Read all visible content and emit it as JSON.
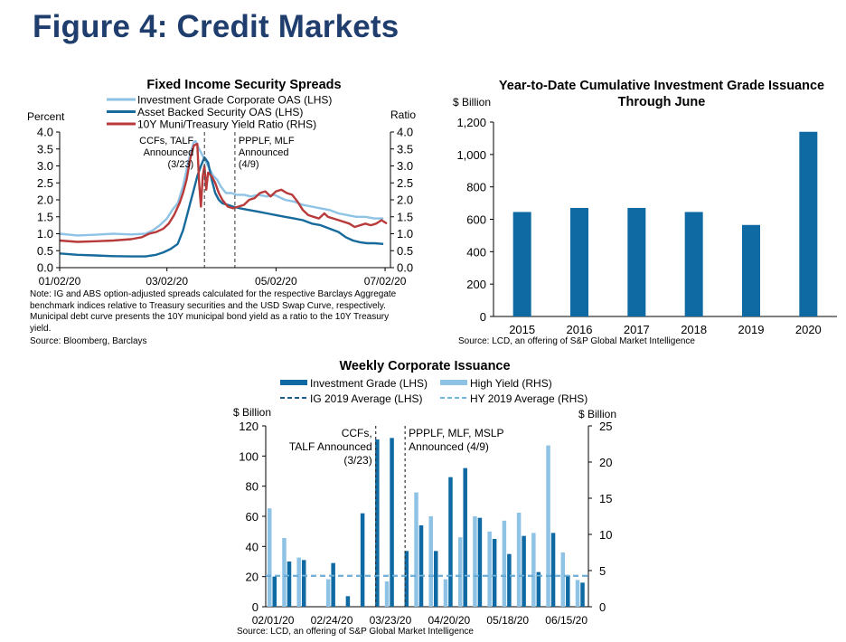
{
  "figure_title": "Figure 4: Credit Markets",
  "colors": {
    "title": "#1f3e6d",
    "ig_light": "#8fc3e6",
    "abs_dark": "#166a9c",
    "muni_red": "#b83a3a",
    "bar_dark": "#0f6aa3",
    "hy_light": "#8fc3e6",
    "ig_avg": "#1b5e8c",
    "hy_avg": "#6fb4dd"
  },
  "chart_data": [
    {
      "id": "spreads",
      "type": "line",
      "title": "Fixed Income Security Spreads",
      "ylabel_left": "Percent",
      "ylabel_right": "Ratio",
      "ylim": [
        0,
        4
      ],
      "yticks": [
        "0.0",
        "0.5",
        "1.0",
        "1.5",
        "2.0",
        "2.5",
        "3.0",
        "3.5",
        "4.0"
      ],
      "x_tick_labels": [
        "01/02/20",
        "03/02/20",
        "05/02/20",
        "07/02/20"
      ],
      "x_tick_days": [
        0,
        60,
        121,
        182
      ],
      "x_range_days": [
        0,
        185
      ],
      "legend": [
        "Investment Grade Corporate OAS (LHS)",
        "Asset Backed Security OAS (LHS)",
        "10Y Muni/Treasury Yield Ratio (RHS)"
      ],
      "series": [
        {
          "name": "Investment Grade Corporate OAS (LHS)",
          "color_key": "ig_light",
          "points": [
            [
              0,
              1.0
            ],
            [
              10,
              0.95
            ],
            [
              20,
              0.97
            ],
            [
              30,
              1.0
            ],
            [
              40,
              0.98
            ],
            [
              48,
              1.0
            ],
            [
              52,
              1.1
            ],
            [
              56,
              1.25
            ],
            [
              60,
              1.45
            ],
            [
              63,
              1.7
            ],
            [
              66,
              1.9
            ],
            [
              69,
              2.4
            ],
            [
              71,
              2.9
            ],
            [
              73,
              3.35
            ],
            [
              75,
              3.7
            ],
            [
              76,
              3.73
            ],
            [
              78,
              3.5
            ],
            [
              80,
              3.3
            ],
            [
              82,
              3.1
            ],
            [
              84,
              2.9
            ],
            [
              86,
              2.7
            ],
            [
              88,
              2.6
            ],
            [
              90,
              2.4
            ],
            [
              93,
              2.2
            ],
            [
              96,
              2.2
            ],
            [
              99,
              2.15
            ],
            [
              103,
              2.15
            ],
            [
              107,
              2.1
            ],
            [
              111,
              2.15
            ],
            [
              116,
              2.1
            ],
            [
              120,
              2.15
            ],
            [
              126,
              2.0
            ],
            [
              131,
              1.95
            ],
            [
              136,
              1.85
            ],
            [
              141,
              1.8
            ],
            [
              146,
              1.75
            ],
            [
              151,
              1.7
            ],
            [
              156,
              1.6
            ],
            [
              161,
              1.55
            ],
            [
              166,
              1.5
            ],
            [
              171,
              1.5
            ],
            [
              176,
              1.45
            ],
            [
              181,
              1.45
            ]
          ]
        },
        {
          "name": "Asset Backed Security OAS (LHS)",
          "color_key": "abs_dark",
          "points": [
            [
              0,
              0.42
            ],
            [
              10,
              0.38
            ],
            [
              20,
              0.36
            ],
            [
              30,
              0.34
            ],
            [
              40,
              0.33
            ],
            [
              48,
              0.33
            ],
            [
              54,
              0.38
            ],
            [
              58,
              0.45
            ],
            [
              62,
              0.55
            ],
            [
              66,
              0.7
            ],
            [
              69,
              1.1
            ],
            [
              71,
              1.5
            ],
            [
              73,
              1.9
            ],
            [
              75,
              2.3
            ],
            [
              77,
              2.7
            ],
            [
              79,
              3.0
            ],
            [
              81,
              3.25
            ],
            [
              83,
              3.1
            ],
            [
              85,
              2.6
            ],
            [
              87,
              2.2
            ],
            [
              89,
              2.0
            ],
            [
              91,
              1.9
            ],
            [
              94,
              1.85
            ],
            [
              97,
              1.8
            ],
            [
              101,
              1.75
            ],
            [
              106,
              1.7
            ],
            [
              111,
              1.65
            ],
            [
              116,
              1.6
            ],
            [
              121,
              1.55
            ],
            [
              126,
              1.5
            ],
            [
              131,
              1.45
            ],
            [
              136,
              1.4
            ],
            [
              141,
              1.3
            ],
            [
              146,
              1.25
            ],
            [
              151,
              1.15
            ],
            [
              156,
              1.05
            ],
            [
              160,
              0.9
            ],
            [
              164,
              0.8
            ],
            [
              168,
              0.75
            ],
            [
              172,
              0.72
            ],
            [
              176,
              0.72
            ],
            [
              181,
              0.7
            ]
          ]
        },
        {
          "name": "10Y Muni/Treasury Yield Ratio (RHS)",
          "color_key": "muni_red",
          "points": [
            [
              0,
              0.8
            ],
            [
              10,
              0.76
            ],
            [
              20,
              0.78
            ],
            [
              30,
              0.8
            ],
            [
              40,
              0.84
            ],
            [
              46,
              0.9
            ],
            [
              50,
              1.0
            ],
            [
              54,
              1.05
            ],
            [
              58,
              1.15
            ],
            [
              61,
              1.3
            ],
            [
              64,
              1.55
            ],
            [
              67,
              1.9
            ],
            [
              69,
              2.2
            ],
            [
              71,
              2.6
            ],
            [
              73,
              3.2
            ],
            [
              75,
              3.6
            ],
            [
              77,
              3.65
            ],
            [
              78,
              2.5
            ],
            [
              79,
              1.8
            ],
            [
              80,
              2.7
            ],
            [
              81,
              3.0
            ],
            [
              82,
              2.3
            ],
            [
              83,
              2.8
            ],
            [
              85,
              2.7
            ],
            [
              87,
              2.5
            ],
            [
              89,
              2.2
            ],
            [
              91,
              2.0
            ],
            [
              94,
              1.8
            ],
            [
              97,
              1.75
            ],
            [
              100,
              1.8
            ],
            [
              103,
              1.85
            ],
            [
              106,
              2.0
            ],
            [
              109,
              2.05
            ],
            [
              112,
              2.2
            ],
            [
              115,
              2.25
            ],
            [
              118,
              2.1
            ],
            [
              121,
              2.25
            ],
            [
              124,
              2.3
            ],
            [
              127,
              2.2
            ],
            [
              130,
              2.15
            ],
            [
              133,
              1.95
            ],
            [
              136,
              1.7
            ],
            [
              139,
              1.55
            ],
            [
              142,
              1.5
            ],
            [
              145,
              1.45
            ],
            [
              148,
              1.6
            ],
            [
              150,
              1.5
            ],
            [
              153,
              1.45
            ],
            [
              156,
              1.4
            ],
            [
              159,
              1.35
            ],
            [
              162,
              1.3
            ],
            [
              165,
              1.2
            ],
            [
              168,
              1.25
            ],
            [
              171,
              1.3
            ],
            [
              174,
              1.25
            ],
            [
              177,
              1.3
            ],
            [
              180,
              1.4
            ],
            [
              183,
              1.3
            ]
          ]
        }
      ],
      "annotations": [
        {
          "lines": [
            "CCFs, TALF",
            "Announced",
            "(3/23)"
          ],
          "day": 81
        },
        {
          "lines": [
            "PPPLF, MLF",
            "Announced",
            "(4/9)"
          ],
          "day": 98
        }
      ],
      "note": "Note: IG and ABS option-adjusted spreads calculated for the respective Barclays Aggregate benchmark indices relative to Treasury securities and the USD Swap Curve, respectively. Municipal debt curve presents the 10Y municipal bond yield as a ratio to the 10Y Treasury yield.",
      "source": "Source: Bloomberg, Barclays"
    },
    {
      "id": "ytd",
      "type": "bar",
      "title_lines": [
        "Year-to-Date Cumulative Investment Grade Issuance",
        "Through June"
      ],
      "ylabel": "$ Billion",
      "ylim": [
        0,
        1200
      ],
      "yticks": [
        "0",
        "200",
        "400",
        "600",
        "800",
        "1,000",
        "1,200"
      ],
      "categories": [
        "2015",
        "2016",
        "2017",
        "2018",
        "2019",
        "2020"
      ],
      "values": [
        645,
        670,
        670,
        645,
        565,
        1140
      ],
      "source": "Source: LCD, an offering of S&P Global Market Intelligence"
    },
    {
      "id": "weekly",
      "type": "bar",
      "title": "Weekly Corporate Issuance",
      "ylabel_left": "$ Billion",
      "ylabel_right": "$ Billion",
      "ylim_left": [
        0,
        120
      ],
      "ylim_right": [
        0,
        25
      ],
      "yticks_left": [
        "0",
        "20",
        "40",
        "60",
        "80",
        "100",
        "120"
      ],
      "yticks_right": [
        "0",
        "5",
        "10",
        "15",
        "20",
        "25"
      ],
      "x_tick_labels": [
        "02/01/20",
        "02/24/20",
        "03/23/20",
        "04/20/20",
        "05/18/20",
        "06/15/20"
      ],
      "legend": [
        "Investment Grade (LHS)",
        "High Yield (RHS)",
        "IG 2019 Average (LHS)",
        "HY 2019 Average (RHS)"
      ],
      "series": [
        {
          "name": "Investment Grade (LHS)",
          "color_key": "bar_dark",
          "axis": "left",
          "values": [
            20,
            30,
            31,
            0,
            29,
            7,
            62,
            111,
            112,
            37,
            54,
            37,
            86,
            92,
            59,
            45,
            35,
            47,
            23,
            49,
            21,
            16
          ]
        },
        {
          "name": "High Yield (RHS)",
          "color_key": "hy_light",
          "axis": "right",
          "values": [
            13.6,
            9.5,
            6.8,
            0,
            3.8,
            0,
            0,
            0,
            3.5,
            0,
            15.8,
            12.5,
            3.8,
            9.6,
            12.5,
            10.4,
            11.9,
            13.0,
            10.2,
            22.3,
            7.5,
            3.7
          ]
        }
      ],
      "ig_2019_average": 20.5,
      "hy_2019_average": 4.3,
      "annotations": [
        {
          "lines": [
            "CCFs,",
            "TALF Announced",
            "(3/23)"
          ],
          "week": 7.5
        },
        {
          "lines": [
            "PPPLF, MLF, MSLP",
            "Announced (4/9)"
          ],
          "week": 9.5
        }
      ],
      "source": "Source: LCD, an offering of S&P Global Market Intelligence"
    }
  ]
}
